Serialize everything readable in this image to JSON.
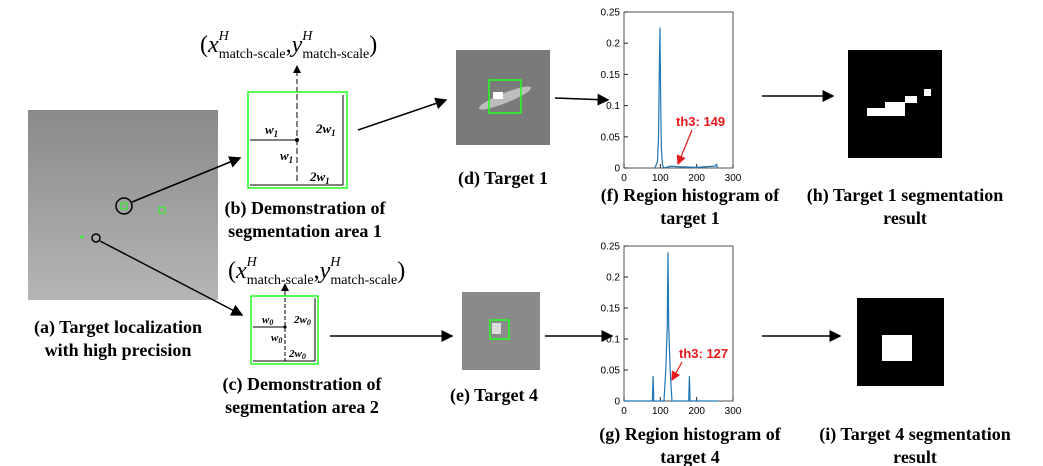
{
  "panels": {
    "a": {
      "caption": [
        "(a) Target localization",
        "with high precision"
      ]
    },
    "b": {
      "caption": [
        "(b) Demonstration of",
        "segmentation area 1"
      ],
      "formula": [
        "(",
        "x",
        "H",
        "match-scale",
        ",",
        "y",
        "H",
        "match-scale",
        ")"
      ],
      "labels": {
        "half": [
          "w",
          "1"
        ],
        "full": [
          "2w",
          "1"
        ]
      }
    },
    "c": {
      "caption": [
        "(c) Demonstration of",
        "segmentation area 2"
      ],
      "formula": [
        "(",
        "x",
        "H",
        "match-scale",
        ",",
        "y",
        "H",
        "match-scale",
        ")"
      ],
      "labels": {
        "half": [
          "w",
          "0"
        ],
        "full": [
          "2w",
          "0"
        ]
      }
    },
    "d": {
      "caption": [
        "(d) Target 1"
      ]
    },
    "e": {
      "caption": [
        "(e) Target 4"
      ]
    },
    "f": {
      "caption": [
        "(f) Region histogram of",
        "target 1"
      ],
      "type": "line",
      "color": "#1f77b4",
      "annotation": "th3: 149",
      "annotation_color": "#e8191c",
      "x": [
        85,
        92,
        95,
        97,
        99,
        101,
        103,
        106,
        110,
        130,
        150,
        200,
        250,
        255,
        257
      ],
      "values": [
        0,
        0.01,
        0.05,
        0.15,
        0.225,
        0.1,
        0.03,
        0.005,
        0,
        0.003,
        0.002,
        0.001,
        0.003,
        0.006,
        0
      ],
      "xlim": [
        0,
        300
      ],
      "ylim": [
        0,
        0.25
      ],
      "xticks": [
        0,
        100,
        200,
        300
      ],
      "yticks": [
        0,
        0.05,
        0.1,
        0.15,
        0.2,
        0.25
      ]
    },
    "g": {
      "caption": [
        "(g) Region histogram of",
        "target 4"
      ],
      "type": "line",
      "color": "#1f77b4",
      "annotation": "th3: 127",
      "annotation_color": "#e8191c",
      "x": [
        0,
        78,
        80,
        82,
        110,
        115,
        119,
        121,
        123,
        127,
        132,
        178,
        180,
        182,
        260
      ],
      "values": [
        0,
        0,
        0.04,
        0,
        0,
        0.05,
        0.12,
        0.24,
        0.12,
        0.05,
        0,
        0,
        0.04,
        0,
        0
      ],
      "xlim": [
        0,
        300
      ],
      "ylim": [
        0,
        0.25
      ],
      "xticks": [
        0,
        100,
        200,
        300
      ],
      "yticks": [
        0,
        0.05,
        0.1,
        0.15,
        0.2,
        0.25
      ]
    },
    "h": {
      "caption": [
        "(h) Target 1 segmentation",
        "result"
      ]
    },
    "i": {
      "caption": [
        "(i) Target 4 segmentation",
        "result"
      ]
    }
  }
}
